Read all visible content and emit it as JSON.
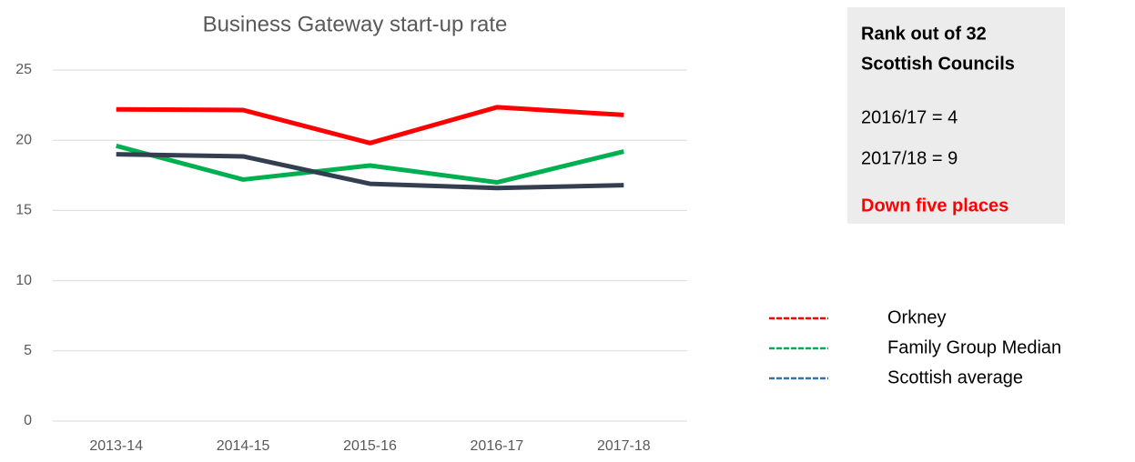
{
  "chart_data": {
    "type": "line",
    "title": "Business Gateway start-up rate",
    "categories": [
      "2013-14",
      "2014-15",
      "2015-16",
      "2016-17",
      "2017-18"
    ],
    "series": [
      {
        "name": "Orkney",
        "color": "#ff0000",
        "legend_color": "#ff0000",
        "values": [
          22.2,
          22.15,
          19.8,
          22.35,
          21.8
        ]
      },
      {
        "name": "Family Group Median",
        "color": "#00b050",
        "legend_color": "#00b050",
        "values": [
          19.6,
          17.2,
          18.2,
          17.0,
          19.2
        ]
      },
      {
        "name": "Scottish average",
        "color": "#333f50",
        "legend_color": "#2e75b6",
        "values": [
          19.0,
          18.85,
          16.9,
          16.6,
          16.8
        ]
      }
    ],
    "ylim": [
      0,
      25
    ],
    "yticks": [
      0,
      5,
      10,
      15,
      20,
      25
    ],
    "grid": true,
    "legend": "right"
  },
  "rank_box": {
    "heading": [
      "Rank out of 32",
      "Scottish Councils"
    ],
    "lines": [
      "2016/17 = 4",
      "2017/18 = 9"
    ],
    "note": "Down five places",
    "note_color": "#ff0000"
  }
}
